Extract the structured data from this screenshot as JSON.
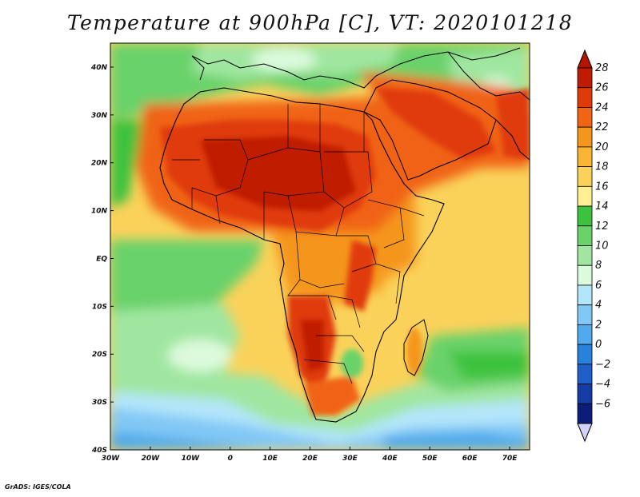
{
  "title": "Temperature at 900hPa [C], VT: 2020101218",
  "credit": "GrADS: IGES/COLA",
  "map": {
    "projection": "lat-lon",
    "lon_range": [
      -30,
      75
    ],
    "lat_range": [
      -40,
      45
    ],
    "x_ticks": [
      "30W",
      "20W",
      "10W",
      "0",
      "10E",
      "20E",
      "30E",
      "40E",
      "50E",
      "60E",
      "70E"
    ],
    "y_ticks": [
      "40N",
      "30N",
      "20N",
      "10N",
      "EQ",
      "10S",
      "20S",
      "30S",
      "40S"
    ],
    "region": "Africa and surrounding oceans"
  },
  "colorbar": {
    "labels": [
      "28",
      "26",
      "24",
      "22",
      "20",
      "18",
      "16",
      "14",
      "12",
      "10",
      "8",
      "6",
      "4",
      "2",
      "0",
      "−2",
      "−4",
      "−6"
    ],
    "colors": [
      "#c01a00",
      "#e03a0a",
      "#f06414",
      "#f5961c",
      "#f8b432",
      "#fad25a",
      "#fff096",
      "#3cc23c",
      "#6ad26a",
      "#a0e6a0",
      "#dcfadc",
      "#b4e6fa",
      "#82c8f5",
      "#50aaeb",
      "#2882dc",
      "#1e5fc8",
      "#143ca5",
      "#0a1e78"
    ],
    "top_arrow_color": "#b41400",
    "bottom_arrow_color": "#d2d2fa"
  }
}
